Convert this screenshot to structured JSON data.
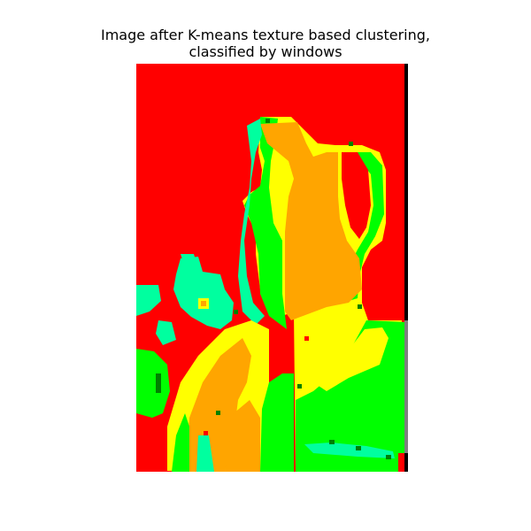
{
  "figure": {
    "title": "Image after K-means texture based clustering,\nclassified by windows"
  },
  "cluster_map": {
    "description_colors": {
      "red": "#ff0000",
      "orange": "#ffa500",
      "yellow": "#ffff00",
      "bright_green": "#00ff00",
      "dark_green": "#008000",
      "aqua": "#00ff9f",
      "black": "#000000",
      "gray": "#7f7f7f",
      "white": "#ffffff"
    }
  }
}
